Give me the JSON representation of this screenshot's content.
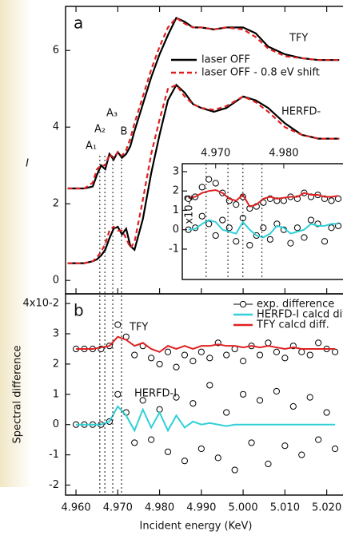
{
  "chart_data": [
    {
      "type": "line",
      "panel_label": "a",
      "ylabel": "I",
      "xlim": [
        4.9575,
        5.0239
      ],
      "ylim": [
        -0.35,
        7.15
      ],
      "yticks": [
        0,
        2,
        4,
        6
      ],
      "x": [
        4.958,
        4.962,
        4.964,
        4.965,
        4.966,
        4.967,
        4.968,
        4.969,
        4.97,
        4.971,
        4.972,
        4.973,
        4.974,
        4.976,
        4.978,
        4.98,
        4.982,
        4.984,
        4.986,
        4.988,
        4.99,
        4.993,
        4.996,
        5.0,
        5.003,
        5.006,
        5.01,
        5.014,
        5.018,
        5.023
      ],
      "series": [
        {
          "label": "TFY",
          "color": "#000000",
          "dash": false,
          "values": [
            2.4,
            2.4,
            2.45,
            2.75,
            3.0,
            2.9,
            3.3,
            3.15,
            3.35,
            3.2,
            3.3,
            3.5,
            3.9,
            4.6,
            5.3,
            5.9,
            6.4,
            6.85,
            6.75,
            6.6,
            6.6,
            6.55,
            6.6,
            6.6,
            6.45,
            6.1,
            5.9,
            5.8,
            5.75,
            5.75
          ]
        },
        {
          "color": "#e02020",
          "dash": true,
          "values": [
            2.4,
            2.4,
            2.55,
            2.9,
            3.0,
            3.0,
            3.3,
            3.2,
            3.35,
            3.25,
            3.4,
            3.7,
            4.1,
            4.8,
            5.5,
            6.1,
            6.6,
            6.85,
            6.7,
            6.6,
            6.6,
            6.55,
            6.6,
            6.55,
            6.35,
            6.05,
            5.85,
            5.8,
            5.75,
            5.75
          ]
        },
        {
          "label": "HERFD-",
          "color": "#000000",
          "dash": false,
          "values": [
            0.45,
            0.45,
            0.5,
            0.55,
            0.65,
            0.8,
            1.1,
            1.35,
            1.4,
            1.2,
            1.35,
            0.9,
            0.8,
            1.6,
            2.8,
            3.8,
            4.7,
            5.1,
            4.9,
            4.6,
            4.5,
            4.4,
            4.5,
            4.8,
            4.7,
            4.5,
            4.1,
            3.8,
            3.7,
            3.7
          ]
        },
        {
          "color": "#e02020",
          "dash": true,
          "values": [
            0.45,
            0.45,
            0.5,
            0.6,
            0.75,
            0.95,
            1.3,
            1.4,
            1.3,
            1.3,
            1.1,
            0.85,
            1.0,
            2.1,
            3.3,
            4.2,
            5.0,
            5.1,
            4.8,
            4.6,
            4.5,
            4.45,
            4.55,
            4.8,
            4.65,
            4.4,
            4.0,
            3.8,
            3.7,
            3.7
          ]
        }
      ],
      "legend": [
        {
          "name": "laser OFF",
          "color": "#000000",
          "dash": false
        },
        {
          "name": "laser OFF - 0.8 eV shift",
          "color": "#e02020",
          "dash": true
        }
      ],
      "annotations": [
        "A₁",
        "A₂",
        "A₃",
        "B"
      ],
      "vlines": [
        4.9657,
        4.9669,
        4.9688,
        4.9709
      ]
    },
    {
      "type": "scatter",
      "ylabel": "x10-2",
      "xlim": [
        4.9651,
        4.9887
      ],
      "ylim": [
        -2.57,
        3.41
      ],
      "xticks": [
        {
          "value": 4.97,
          "label": "4.970"
        },
        {
          "value": 4.98,
          "label": "4.980"
        }
      ],
      "yticks": [
        3,
        2,
        1,
        0,
        -1
      ],
      "x": [
        4.966,
        4.967,
        4.968,
        4.969,
        4.97,
        4.971,
        4.972,
        4.973,
        4.974,
        4.975,
        4.976,
        4.977,
        4.978,
        4.979,
        4.98,
        4.981,
        4.982,
        4.983,
        4.984,
        4.985,
        4.986,
        4.987,
        4.988
      ],
      "series": [
        {
          "style": "points",
          "color": "#000000",
          "values": [
            1.6,
            1.7,
            2.2,
            2.6,
            2.4,
            1.9,
            1.5,
            1.3,
            1.7,
            1.1,
            1.2,
            1.4,
            1.6,
            1.5,
            1.5,
            1.7,
            1.6,
            1.9,
            1.7,
            1.8,
            1.6,
            1.5,
            1.6
          ]
        },
        {
          "style": "line",
          "color": "#e02020",
          "values": [
            1.65,
            1.7,
            1.9,
            2.0,
            2.05,
            1.9,
            1.6,
            1.5,
            1.8,
            1.2,
            1.3,
            1.6,
            1.7,
            1.6,
            1.65,
            1.7,
            1.7,
            1.9,
            1.8,
            1.8,
            1.7,
            1.7,
            1.75
          ]
        },
        {
          "style": "points",
          "color": "#000000",
          "values": [
            0.0,
            0.1,
            0.7,
            0.3,
            -0.3,
            0.5,
            0.1,
            -0.6,
            0.6,
            -0.8,
            -0.3,
            0.1,
            -0.5,
            0.3,
            0.0,
            -0.7,
            0.1,
            -0.4,
            0.5,
            0.3,
            -0.6,
            0.1,
            0.2
          ]
        },
        {
          "style": "line",
          "color": "#30d0d8",
          "values": [
            0.0,
            0.05,
            0.3,
            0.5,
            0.4,
            0.0,
            -0.1,
            -0.2,
            0.4,
            0.0,
            -0.3,
            -0.4,
            -0.2,
            0.2,
            0.1,
            -0.2,
            -0.1,
            0.0,
            0.3,
            0.2,
            0.2,
            0.3,
            0.3
          ]
        }
      ],
      "vlines": [
        4.9686,
        4.9718,
        4.974,
        4.9768
      ]
    },
    {
      "type": "scatter",
      "panel_label": "b",
      "ylabel": "Spectral difference",
      "xlabel": "Incident energy (KeV)",
      "xlim": [
        4.9575,
        5.0239
      ],
      "ylim": [
        -2.33,
        4.32
      ],
      "xticks": [
        {
          "value": 4.96,
          "label": "4.960"
        },
        {
          "value": 4.97,
          "label": "4.970"
        },
        {
          "value": 4.98,
          "label": "4.980"
        },
        {
          "value": 4.99,
          "label": "4.990"
        },
        {
          "value": 5.0,
          "label": "5.000"
        },
        {
          "value": 5.01,
          "label": "5.010"
        },
        {
          "value": 5.02,
          "label": "5.020"
        }
      ],
      "yticks": [
        {
          "value": 4,
          "label": "4x10-2"
        },
        3,
        2,
        1,
        0,
        -1,
        -2
      ],
      "x": [
        4.96,
        4.962,
        4.964,
        4.966,
        4.968,
        4.97,
        4.972,
        4.974,
        4.976,
        4.978,
        4.98,
        4.982,
        4.984,
        4.986,
        4.988,
        4.99,
        4.992,
        4.994,
        4.996,
        4.998,
        5.0,
        5.002,
        5.004,
        5.006,
        5.008,
        5.01,
        5.012,
        5.014,
        5.016,
        5.018,
        5.02,
        5.022
      ],
      "series": [
        {
          "label": "TFY",
          "style": "points",
          "color": "#000000",
          "values": [
            2.5,
            2.5,
            2.5,
            2.5,
            2.6,
            3.3,
            2.9,
            2.3,
            2.6,
            2.2,
            2.0,
            2.4,
            1.9,
            2.3,
            2.1,
            2.4,
            2.2,
            2.7,
            2.3,
            2.5,
            2.1,
            2.6,
            2.3,
            2.7,
            2.4,
            2.2,
            2.6,
            2.4,
            2.3,
            2.7,
            2.5,
            2.4
          ]
        },
        {
          "style": "line",
          "color": "#e02020",
          "values": [
            2.5,
            2.5,
            2.5,
            2.55,
            2.6,
            2.9,
            2.8,
            2.6,
            2.7,
            2.5,
            2.4,
            2.6,
            2.5,
            2.6,
            2.5,
            2.6,
            2.6,
            2.65,
            2.6,
            2.6,
            2.55,
            2.6,
            2.55,
            2.6,
            2.55,
            2.5,
            2.55,
            2.5,
            2.5,
            2.5,
            2.5,
            2.5
          ]
        },
        {
          "label": "HERFD-I",
          "style": "points",
          "color": "#000000",
          "values": [
            0,
            0,
            0,
            0,
            0.1,
            1.0,
            0.4,
            -0.6,
            0.8,
            -0.5,
            0.5,
            -0.9,
            0.9,
            -1.2,
            0.7,
            -0.8,
            1.3,
            -1.1,
            0.4,
            -1.5,
            1.0,
            -0.6,
            0.8,
            -1.3,
            1.1,
            -0.7,
            0.6,
            -1.0,
            0.9,
            -0.5,
            0.4,
            -0.8
          ]
        },
        {
          "style": "line",
          "color": "#30d0d8",
          "values": [
            0,
            0,
            0,
            0,
            0.1,
            0.6,
            0.3,
            -0.2,
            0.5,
            -0.1,
            0.4,
            -0.2,
            0.3,
            -0.1,
            0.1,
            0,
            0.05,
            0,
            -0.05,
            0,
            0,
            0,
            0,
            0,
            0,
            0,
            0,
            0,
            0,
            0,
            0,
            0
          ]
        }
      ],
      "legend": [
        {
          "name": "exp. difference",
          "style": "points",
          "color": "#000000"
        },
        {
          "name": "HERFD-I calcd dif",
          "style": "line",
          "color": "#30d0d8"
        },
        {
          "name": "TFY calcd diff.",
          "style": "line",
          "color": "#e02020"
        }
      ]
    }
  ]
}
